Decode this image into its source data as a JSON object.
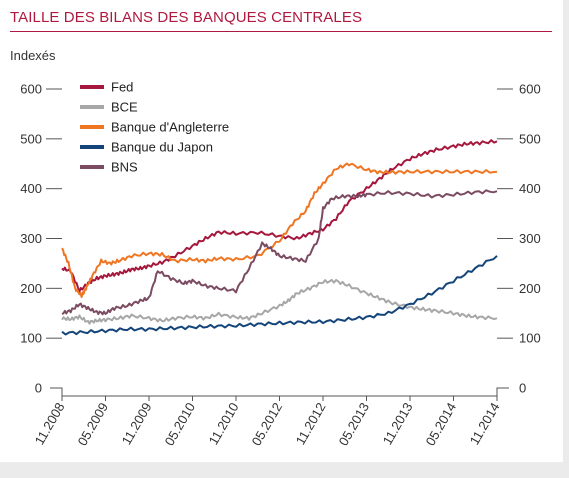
{
  "chart_data": {
    "type": "line",
    "title": "TAILLE DES BILANS DES BANQUES CENTRALES",
    "ylabel": "Indexés",
    "xlabel": "",
    "ylim": [
      0,
      600
    ],
    "yticks": [
      "600",
      "500",
      "400",
      "300",
      "200",
      "100",
      "0"
    ],
    "yticks_values": [
      600,
      500,
      400,
      300,
      200,
      100,
      0
    ],
    "xticks": [
      "11.2008",
      "05.2009",
      "11.2009",
      "05.2010",
      "11.2010",
      "05.2012",
      "11.2012",
      "05.2013",
      "11.2013",
      "05.2014",
      "11.2014"
    ],
    "grid": false,
    "legend_position": "top-left",
    "series": [
      {
        "name": "Fed",
        "color": "#a6173d",
        "x": [
          0,
          0.2,
          0.4,
          0.6,
          0.8,
          1,
          1.2,
          1.4,
          1.6,
          1.8,
          2,
          2.3,
          2.6,
          3,
          3.3,
          3.6,
          4,
          4.5,
          5,
          5.4,
          5.7,
          6,
          6.3,
          6.6,
          7,
          7.3,
          7.6,
          8,
          8.3,
          8.6,
          9,
          9.3,
          9.6,
          10
        ],
        "values": [
          240,
          235,
          195,
          210,
          220,
          225,
          228,
          232,
          238,
          240,
          245,
          252,
          265,
          285,
          300,
          313,
          310,
          312,
          305,
          300,
          310,
          318,
          340,
          375,
          400,
          420,
          440,
          460,
          470,
          478,
          485,
          490,
          492,
          495
        ]
      },
      {
        "name": "BCE",
        "color": "#a7a7a7",
        "x": [
          0,
          0.2,
          0.4,
          0.6,
          0.8,
          1,
          1.3,
          1.6,
          2,
          2.3,
          2.6,
          3,
          3.3,
          3.6,
          4,
          4.3,
          4.6,
          5,
          5.2,
          5.4,
          5.7,
          6,
          6.3,
          6.6,
          7,
          7.3,
          7.6,
          8,
          8.3,
          8.6,
          9,
          9.3,
          9.6,
          10
        ],
        "values": [
          140,
          138,
          143,
          132,
          135,
          137,
          140,
          145,
          140,
          135,
          140,
          143,
          140,
          148,
          142,
          140,
          150,
          165,
          175,
          190,
          200,
          213,
          215,
          205,
          190,
          180,
          170,
          162,
          158,
          155,
          150,
          145,
          142,
          140
        ]
      },
      {
        "name": "Banque d'Angleterre",
        "color": "#ee7623",
        "x": [
          0,
          0.15,
          0.3,
          0.45,
          0.55,
          0.7,
          0.9,
          1.1,
          1.3,
          1.6,
          2,
          2.3,
          2.6,
          3,
          3.3,
          3.6,
          4,
          4.5,
          5,
          5.3,
          5.6,
          5.8,
          6,
          6.3,
          6.6,
          7,
          7.3,
          7.6,
          8,
          8.5,
          9,
          9.5,
          10
        ],
        "values": [
          280,
          250,
          200,
          185,
          200,
          225,
          255,
          250,
          255,
          265,
          270,
          268,
          255,
          258,
          255,
          260,
          258,
          265,
          295,
          330,
          355,
          390,
          410,
          440,
          450,
          438,
          433,
          433,
          434,
          434,
          434,
          434,
          434
        ]
      },
      {
        "name": "Banque du Japon",
        "color": "#14457a",
        "x": [
          0,
          0.5,
          1,
          1.5,
          2,
          2.5,
          3,
          3.5,
          4,
          4.5,
          5,
          5.5,
          6,
          6.5,
          7,
          7.5,
          8,
          8.5,
          9,
          9.5,
          10
        ],
        "values": [
          110,
          112,
          115,
          118,
          118,
          120,
          122,
          124,
          125,
          128,
          130,
          132,
          133,
          137,
          142,
          150,
          168,
          190,
          215,
          240,
          265
        ]
      },
      {
        "name": "BNS",
        "color": "#7b4b62",
        "x": [
          0,
          0.2,
          0.4,
          0.6,
          0.8,
          1,
          1.2,
          1.5,
          1.8,
          2,
          2.2,
          2.5,
          2.8,
          3,
          3.3,
          3.6,
          4,
          4.3,
          4.6,
          4.8,
          5,
          5.3,
          5.6,
          5.9,
          6,
          6.2,
          6.5,
          6.8,
          7,
          7.5,
          8,
          8.5,
          9,
          9.5,
          10
        ],
        "values": [
          150,
          155,
          168,
          160,
          152,
          150,
          160,
          165,
          175,
          180,
          235,
          220,
          210,
          215,
          205,
          200,
          195,
          240,
          290,
          280,
          265,
          260,
          255,
          300,
          360,
          380,
          385,
          385,
          388,
          392,
          390,
          385,
          388,
          393,
          395
        ]
      }
    ]
  }
}
